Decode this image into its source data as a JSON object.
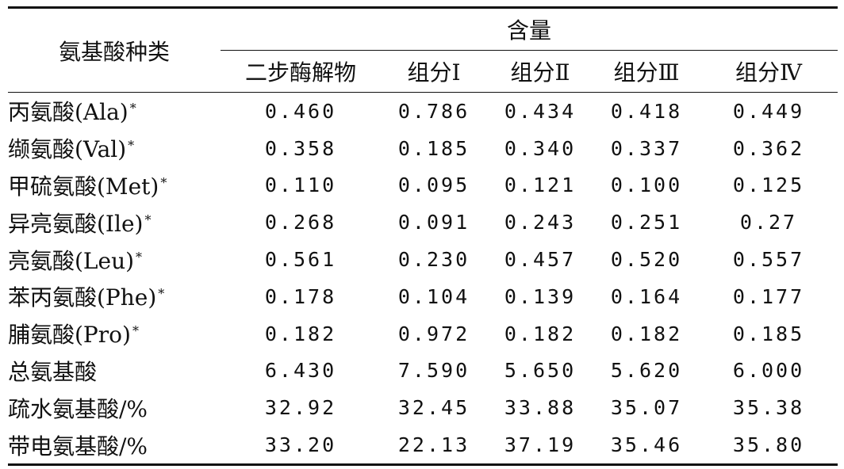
{
  "table": {
    "row_header": "氨基酸种类",
    "group_header": "含量",
    "columns": [
      "二步酶解物",
      "组分Ⅰ",
      "组分Ⅱ",
      "组分Ⅲ",
      "组分Ⅳ"
    ],
    "rows": [
      {
        "name": "丙氨酸(Ala)",
        "mark": "*",
        "values": [
          "0.460",
          "0.786",
          "0.434",
          "0.418",
          "0.449"
        ]
      },
      {
        "name": "缬氨酸(Val)",
        "mark": "*",
        "values": [
          "0.358",
          "0.185",
          "0.340",
          "0.337",
          "0.362"
        ]
      },
      {
        "name": "甲硫氨酸(Met)",
        "mark": "*",
        "values": [
          "0.110",
          "0.095",
          "0.121",
          "0.100",
          "0.125"
        ]
      },
      {
        "name": "异亮氨酸(Ile)",
        "mark": "*",
        "values": [
          "0.268",
          "0.091",
          "0.243",
          "0.251",
          "0.27"
        ]
      },
      {
        "name": "亮氨酸(Leu)",
        "mark": "*",
        "values": [
          "0.561",
          "0.230",
          "0.457",
          "0.520",
          "0.557"
        ]
      },
      {
        "name": "苯丙氨酸(Phe)",
        "mark": "*",
        "values": [
          "0.178",
          "0.104",
          "0.139",
          "0.164",
          "0.177"
        ]
      },
      {
        "name": "脯氨酸(Pro)",
        "mark": "*",
        "values": [
          "0.182",
          "0.972",
          "0.182",
          "0.182",
          "0.185"
        ]
      },
      {
        "name": "总氨基酸",
        "mark": "",
        "values": [
          "6.430",
          "7.590",
          "5.650",
          "5.620",
          "6.000"
        ]
      },
      {
        "name": "疏水氨基酸/%",
        "mark": "",
        "values": [
          "32.92",
          "32.45",
          "33.88",
          "35.07",
          "35.38"
        ]
      },
      {
        "name": "带电氨基酸/%",
        "mark": "",
        "values": [
          "33.20",
          "22.13",
          "37.19",
          "35.46",
          "35.80"
        ]
      }
    ]
  }
}
